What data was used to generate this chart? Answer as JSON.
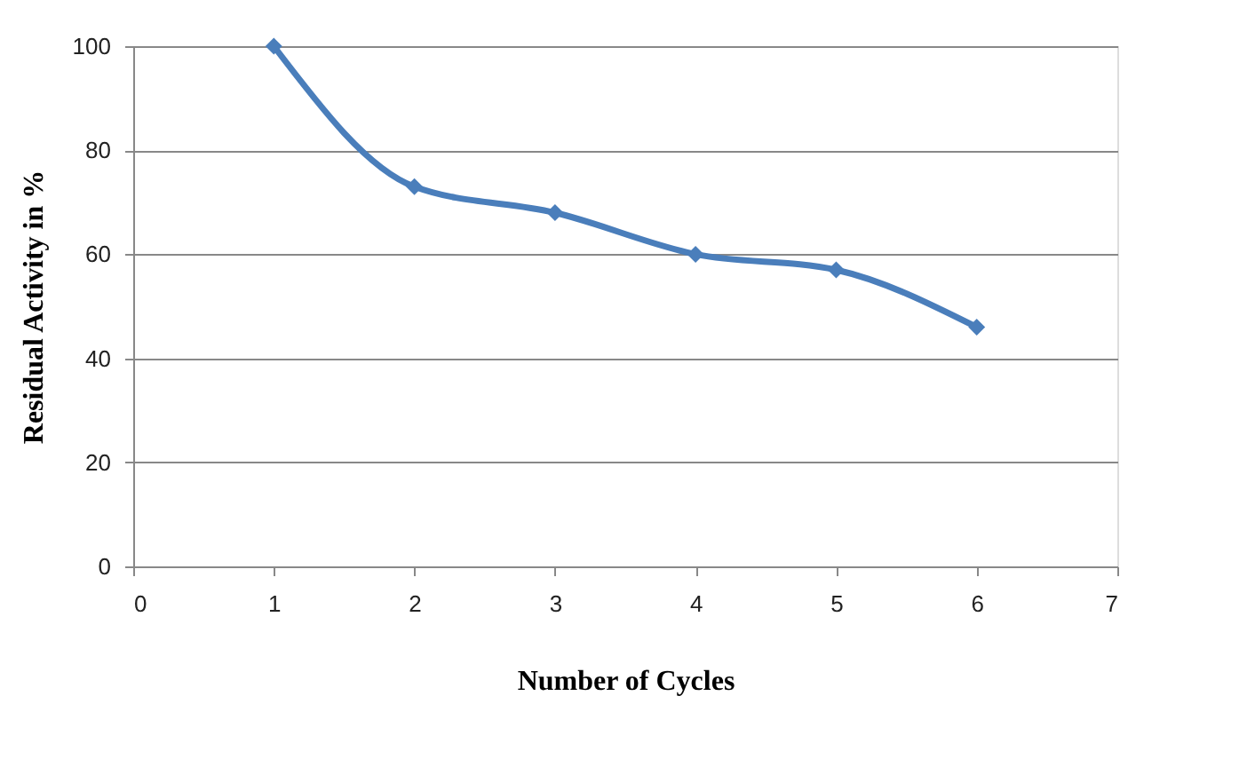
{
  "chart_data": {
    "type": "line",
    "xlabel": "Number of Cycles",
    "ylabel": "Residual Activity in %",
    "x": [
      1,
      2,
      3,
      4,
      5,
      6
    ],
    "series": [
      {
        "color": "#4a7ebb",
        "values": [
          100,
          73,
          68,
          60,
          57,
          46
        ]
      }
    ],
    "xlim": [
      0,
      7
    ],
    "xticks": [
      0,
      1,
      2,
      3,
      4,
      5,
      6,
      7
    ],
    "ylim": [
      0,
      100
    ],
    "yticks": [
      0,
      20,
      40,
      60,
      80,
      100
    ],
    "grid": "y",
    "marker": "diamond",
    "line_style": "solid"
  }
}
